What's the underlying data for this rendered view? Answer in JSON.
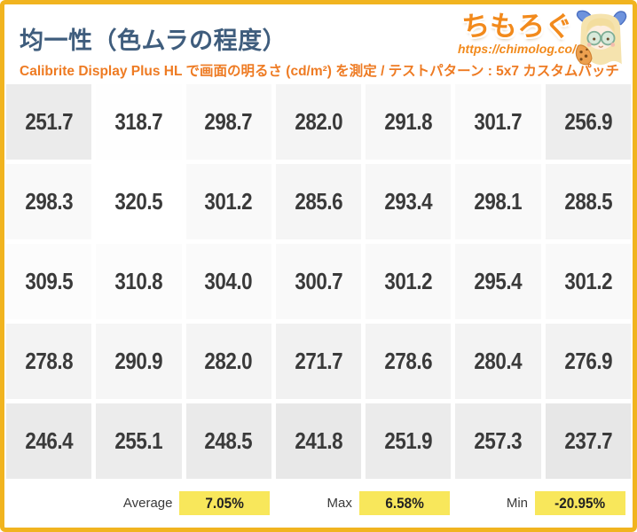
{
  "header": {
    "title": "均一性（色ムラの程度）",
    "subtitle": "Calibrite Display Plus HL で画面の明るさ (cd/m²) を測定 / テストパターン : 5x7 カスタムパッチ",
    "logo_text": "ちもろぐ",
    "logo_url": "https://chimolog.co/"
  },
  "chart_data": {
    "type": "heatmap",
    "title": "均一性（色ムラの程度）",
    "subtitle": "Calibrite Display Plus HL で画面の明るさ (cd/m²) を測定 / テストパターン : 5x7 カスタムパッチ",
    "unit": "cd/m²",
    "grid_size": "5x7",
    "values": [
      [
        251.7,
        318.7,
        298.7,
        282.0,
        291.8,
        301.7,
        256.9
      ],
      [
        298.3,
        320.5,
        301.2,
        285.6,
        293.4,
        298.1,
        288.5
      ],
      [
        309.5,
        310.8,
        304.0,
        300.7,
        301.2,
        295.4,
        301.2
      ],
      [
        278.8,
        290.9,
        282.0,
        271.7,
        278.6,
        280.4,
        276.9
      ],
      [
        246.4,
        255.1,
        248.5,
        241.8,
        251.9,
        257.3,
        237.7
      ]
    ],
    "shading": "cell background lightness maps to value: brighter value = whiter cell",
    "summary": [
      {
        "label": "Average",
        "value": "7.05%"
      },
      {
        "label": "Max",
        "value": "6.58%"
      },
      {
        "label": "Min",
        "value": "-20.95%"
      }
    ]
  },
  "colors": {
    "frame_border": "#f1b41f",
    "title_text": "#3f5d7d",
    "accent_orange": "#ee7b23",
    "logo_orange": "#f28a1c",
    "cell_text": "#3a3a3a",
    "highlight_yellow": "#f8e75b",
    "cell_shade_min": "#e7e7e7",
    "cell_shade_max": "#ffffff"
  }
}
